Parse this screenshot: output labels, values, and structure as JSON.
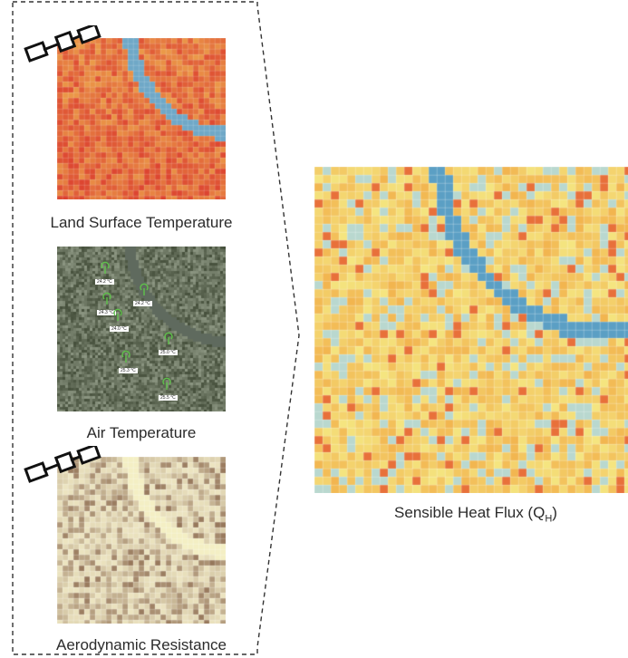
{
  "panels": {
    "land_surface_temperature": {
      "caption": "Land Surface Temperature"
    },
    "air_temperature": {
      "caption": "Air Temperature",
      "stations": [
        "24.2 °C",
        "24.2 °C",
        "24.3 °C",
        "24.0 °C",
        "25.0 °C",
        "25.3 °C",
        "25.5 °C",
        "25.0 °C"
      ]
    },
    "aerodynamic_resistance": {
      "caption": "Aerodynamic Resistance"
    }
  },
  "output": {
    "caption_main": "Sensible Heat Flux (Q",
    "caption_sub": "H",
    "caption_end": ")"
  },
  "colors": {
    "lst_cool": "#f6d85a",
    "lst_hot": "#d9302a",
    "river": "#6fa8c7",
    "qh_river": "#5b9fc4",
    "ra_light": "#ece4c0",
    "ra_dark": "#8c6a4f",
    "dashed_line": "#333333"
  },
  "icons": [
    "satellite-icon",
    "thermometer-station-icon"
  ]
}
